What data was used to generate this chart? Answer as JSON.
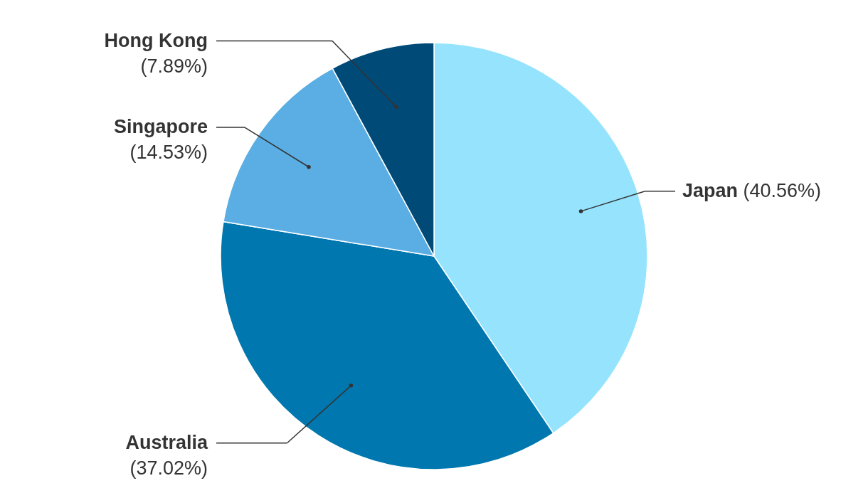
{
  "chart_data": {
    "type": "pie",
    "categories": [
      "Japan",
      "Australia",
      "Singapore",
      "Hong Kong"
    ],
    "values": [
      40.56,
      37.02,
      14.53,
      7.89
    ],
    "value_labels": [
      "(40.56%)",
      "(37.02%)",
      "(14.53%)",
      "(7.89%)"
    ],
    "colors": [
      "#95e3fd",
      "#0077ae",
      "#5aaee3",
      "#004a78"
    ]
  }
}
